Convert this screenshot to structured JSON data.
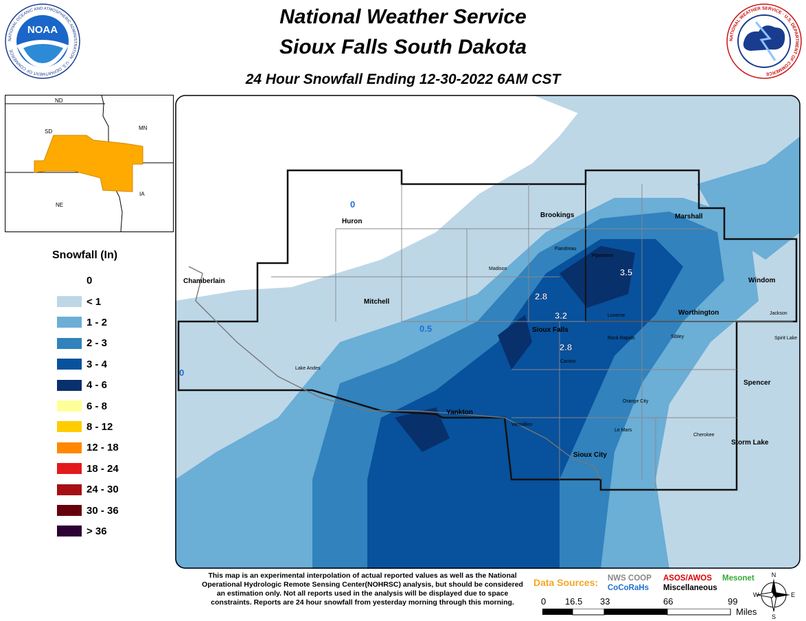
{
  "header": {
    "title_line1": "National Weather Service",
    "title_line2": "Sioux Falls South Dakota",
    "subtitle": "24 Hour Snowfall Ending 12-30-2022 6AM CST"
  },
  "logos": {
    "noaa_text": "NOAA",
    "noaa_ring": "NATIONAL OCEANIC AND ATMOSPHERIC ADMINISTRATION · U.S. DEPARTMENT OF COMMERCE",
    "nws_ring": "NATIONAL WEATHER SERVICE · U.S. DEPARTMENT OF COMMERCE"
  },
  "inset_map": {
    "labels": [
      "ND",
      "SD",
      "MN",
      "NE",
      "IA"
    ],
    "highlight_color": "#ffaa00"
  },
  "legend": {
    "title": "Snowfall (In)",
    "zero_label": "0",
    "items": [
      {
        "label": "< 1",
        "color": "#bdd7e7"
      },
      {
        "label": "1 - 2",
        "color": "#6baed6"
      },
      {
        "label": "2 - 3",
        "color": "#3182bd"
      },
      {
        "label": "3 - 4",
        "color": "#08519c"
      },
      {
        "label": "4 - 6",
        "color": "#08306b"
      },
      {
        "label": "6 - 8",
        "color": "#ffff99"
      },
      {
        "label": "8 - 12",
        "color": "#ffcc00"
      },
      {
        "label": "12 - 18",
        "color": "#ff8800"
      },
      {
        "label": "18 - 24",
        "color": "#e31a1c"
      },
      {
        "label": "24 - 30",
        "color": "#a50f15"
      },
      {
        "label": "30 - 36",
        "color": "#67000d"
      },
      {
        "label": "> 36",
        "color": "#2d0033"
      }
    ]
  },
  "map": {
    "cities_bold": [
      "Huron",
      "Brookings",
      "Marshall",
      "Chamberlain",
      "Mitchell",
      "Windom",
      "Worthington",
      "Sioux Falls",
      "Yankton",
      "Spencer",
      "Storm Lake",
      "Sioux City"
    ],
    "cities_small": [
      "Flandreau",
      "Pipestone",
      "Madison",
      "Luverne",
      "Jackson",
      "Rock Rapids",
      "Sibley",
      "Spirit Lake",
      "Canton",
      "Lake Andes",
      "Orange City",
      "Vermillion",
      "Le Mars",
      "Cherokee"
    ],
    "observations": [
      {
        "value": "0",
        "near": "Huron"
      },
      {
        "value": "3.5",
        "near": "Pipestone"
      },
      {
        "value": "2.8",
        "near": "Flandreau"
      },
      {
        "value": "3.2",
        "near": "Sioux Falls"
      },
      {
        "value": "2.8",
        "near": "Canton"
      },
      {
        "value": "0.5",
        "near": "Mitchell"
      },
      {
        "value": "0",
        "near": "Chamberlain"
      }
    ]
  },
  "disclaimer": "This map is an experimental interpolation of actual reported values as well as the National Operational Hydrologic Remote Sensing Center(NOHRSC) analysis, but should be considered an estimation only. Not all reports used in the analysis will be displayed due to space constraints. Reports are 24 hour snowfall from yesterday morning through this morning.",
  "data_sources": {
    "title": "Data Sources:",
    "items": [
      {
        "label": "NWS COOP",
        "color": "#888888"
      },
      {
        "label": "ASOS/AWOS",
        "color": "#dd0000"
      },
      {
        "label": "Mesonet",
        "color": "#33aa33"
      },
      {
        "label": "CoCoRaHs",
        "color": "#1f6fd1"
      },
      {
        "label": "Miscellaneous",
        "color": "#000000"
      }
    ],
    "title_color": "#f5a623"
  },
  "scale_bar": {
    "ticks": [
      "0",
      "16.5",
      "33",
      "66",
      "99"
    ],
    "unit": "Miles"
  },
  "compass": {
    "n": "N",
    "s": "S",
    "e": "E",
    "w": "W"
  }
}
